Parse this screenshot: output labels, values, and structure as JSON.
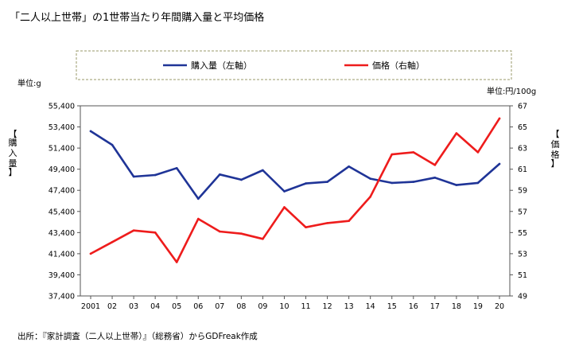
{
  "chart_data": {
    "type": "line",
    "title": "「二人以上世帯」の1世帯当たり年間購入量と平均価格",
    "left_unit_label": "単位:g",
    "right_unit_label": "単位:円/100g",
    "left_axis_label": [
      "【",
      "購",
      "入",
      "量",
      "】"
    ],
    "right_axis_label": [
      "【",
      "価",
      "格",
      "】"
    ],
    "source": "出所：『家計調査（二人以上世帯）』（総務省）からGDFreak作成",
    "categories": [
      "2001",
      "02",
      "03",
      "04",
      "05",
      "06",
      "07",
      "08",
      "09",
      "10",
      "11",
      "12",
      "13",
      "14",
      "15",
      "16",
      "17",
      "18",
      "19",
      "20"
    ],
    "y_left": {
      "min": 37400,
      "max": 55400,
      "ticks": [
        37400,
        39400,
        41400,
        43400,
        45400,
        47400,
        49400,
        51400,
        53400,
        55400
      ],
      "tick_labels": [
        "37,400",
        "39,400",
        "41,400",
        "43,400",
        "45,400",
        "47,400",
        "49,400",
        "51,400",
        "53,400",
        "55,400"
      ]
    },
    "y_right": {
      "min": 49,
      "max": 67,
      "ticks": [
        49,
        51,
        53,
        55,
        57,
        59,
        61,
        63,
        65,
        67
      ],
      "tick_labels": [
        "49",
        "51",
        "53",
        "55",
        "57",
        "59",
        "61",
        "63",
        "65",
        "67"
      ]
    },
    "series": [
      {
        "name": "購入量（左軸）",
        "axis": "left",
        "color": "#1f3497",
        "values": [
          53000,
          51700,
          48700,
          48850,
          49500,
          46600,
          48900,
          48400,
          49300,
          47300,
          48050,
          48200,
          49650,
          48500,
          48100,
          48200,
          48600,
          47900,
          48100,
          49900
        ]
      },
      {
        "name": "価格（右軸）",
        "axis": "right",
        "color": "#ee1c1c",
        "values": [
          53.0,
          54.1,
          55.2,
          55.0,
          52.2,
          56.3,
          55.1,
          54.9,
          54.4,
          57.4,
          55.5,
          55.9,
          56.1,
          58.4,
          62.4,
          62.6,
          61.4,
          64.4,
          62.6,
          65.8
        ]
      }
    ],
    "grid": false,
    "legend_position": "top"
  }
}
